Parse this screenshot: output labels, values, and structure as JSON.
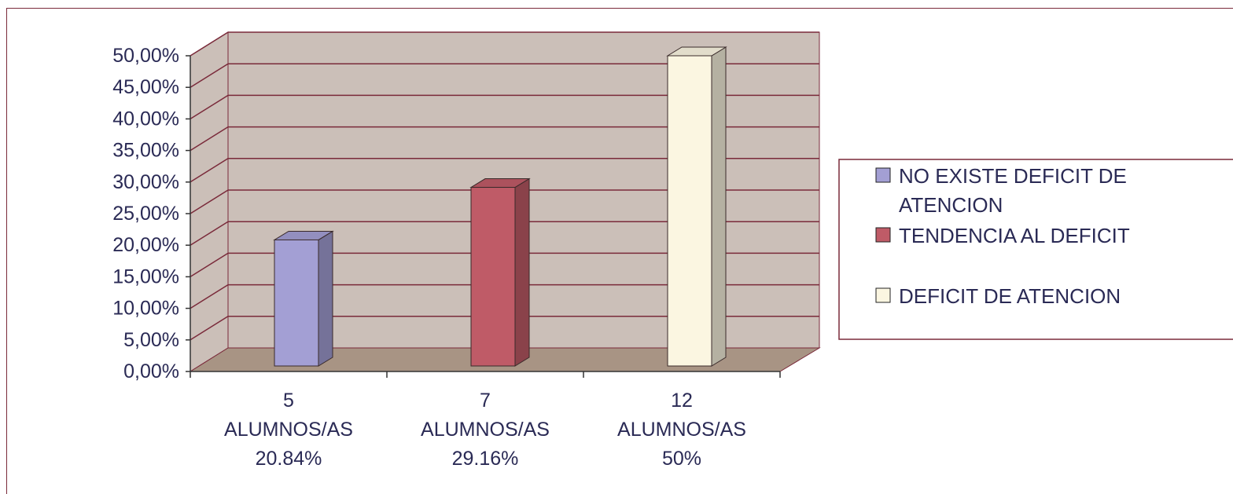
{
  "chart_data": {
    "type": "bar",
    "categories": [
      [
        "5",
        "ALUMNOS/AS",
        "20.84%"
      ],
      [
        "7",
        "ALUMNOS/AS",
        "29.16%"
      ],
      [
        "12",
        "ALUMNOS/AS",
        "50%"
      ]
    ],
    "series": [
      {
        "name": "NO EXISTE DEFICIT DE ATENCION",
        "legend_lines": [
          "NO EXISTE DEFICIT DE",
          "ATENCION"
        ],
        "value": 20.84,
        "color": "#a39fd4"
      },
      {
        "name": "TENDENCIA AL DEFICIT",
        "legend_lines": [
          "TENDENCIA AL DEFICIT"
        ],
        "value": 29.16,
        "color": "#bf5b67"
      },
      {
        "name": "DEFICIT DE ATENCION",
        "legend_lines": [
          "DEFICIT DE ATENCION"
        ],
        "value": 50,
        "color": "#fbf6e1"
      }
    ],
    "ylim": [
      0,
      50
    ],
    "y_ticks": [
      "0,00%",
      "5,00%",
      "10,00%",
      "15,00%",
      "20,00%",
      "25,00%",
      "30,00%",
      "35,00%",
      "40,00%",
      "45,00%",
      "50,00%"
    ],
    "grid": true,
    "legend_position": "right",
    "wall_color": "#cbbfb8",
    "floor_color": "#a89484",
    "grid_color": "#7a2a3a"
  }
}
